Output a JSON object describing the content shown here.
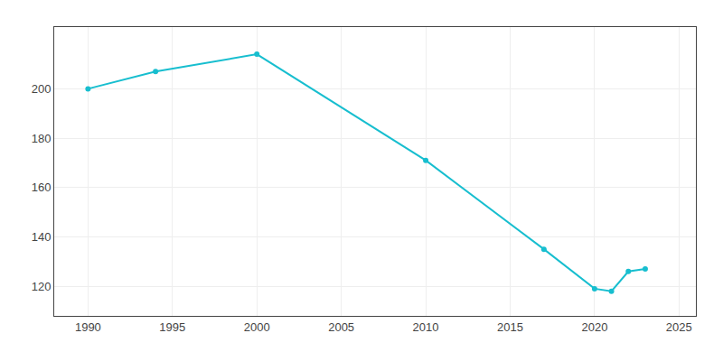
{
  "chart_data": {
    "type": "line",
    "x": [
      1990,
      1994,
      2000,
      2010,
      2017,
      2020,
      2021,
      2022,
      2023
    ],
    "values": [
      200,
      207,
      214,
      171,
      135,
      119,
      118,
      126,
      127
    ],
    "color": "#17BECF",
    "marker": "circle",
    "xlim": [
      1988,
      2026
    ],
    "ylim": [
      108,
      225
    ],
    "xticks": [
      1990,
      1995,
      2000,
      2005,
      2010,
      2015,
      2020,
      2025
    ],
    "yticks": [
      120,
      140,
      160,
      180,
      200
    ],
    "grid": true
  }
}
